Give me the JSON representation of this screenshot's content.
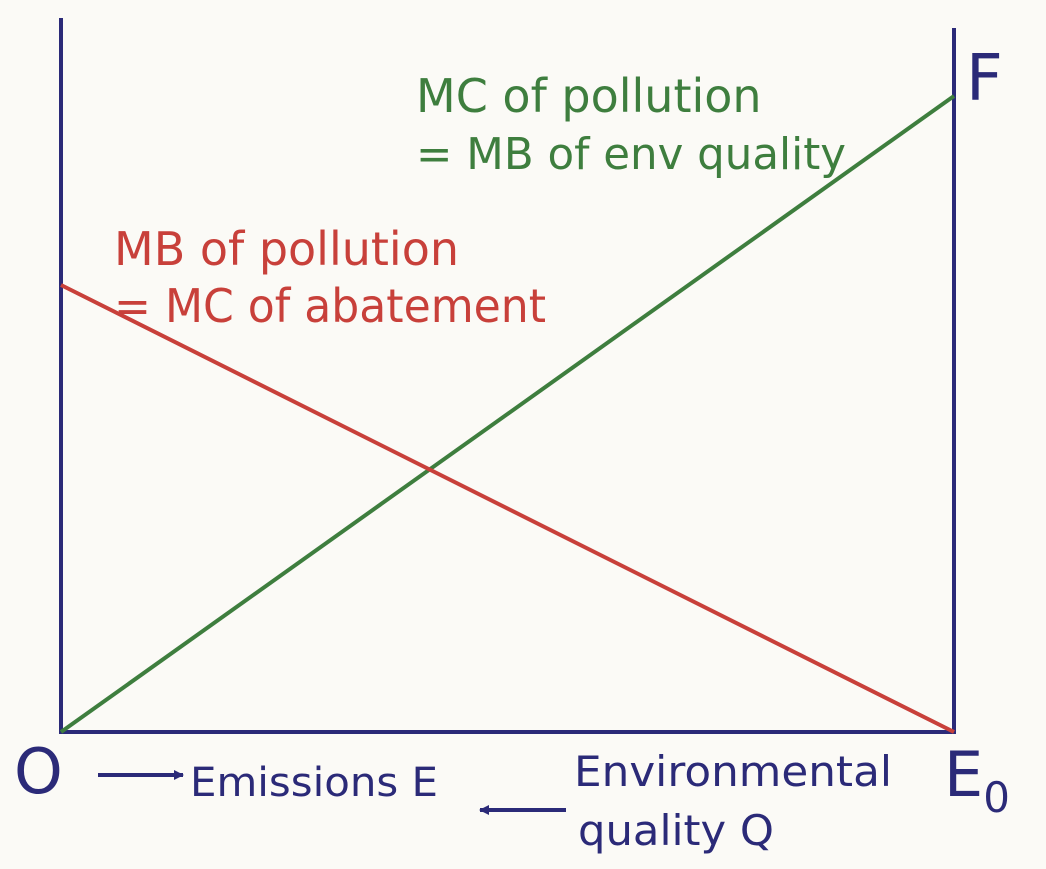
{
  "colors": {
    "background": "#fbfaf6",
    "axis": "#2b2a78",
    "mb_pollution_curve": "#c8403a",
    "mc_pollution_curve": "#3e7e3e"
  },
  "labels": {
    "origin": "O",
    "right_axis_top": "F",
    "right_axis_bottom": "E",
    "right_axis_bottom_subscript": "0",
    "emissions": "Emissions E",
    "env_quality_line1": "Environmental",
    "env_quality_line2": "quality Q"
  },
  "curves": {
    "mc_pollution": {
      "line1": "MC of pollution",
      "line2": "= MB of env quality"
    },
    "mb_pollution": {
      "line1": "MB of pollution",
      "line2": "= MC of abatement"
    }
  },
  "icons": {
    "emissions_arrow": "arrow-right-icon",
    "quality_arrow": "arrow-left-icon"
  }
}
